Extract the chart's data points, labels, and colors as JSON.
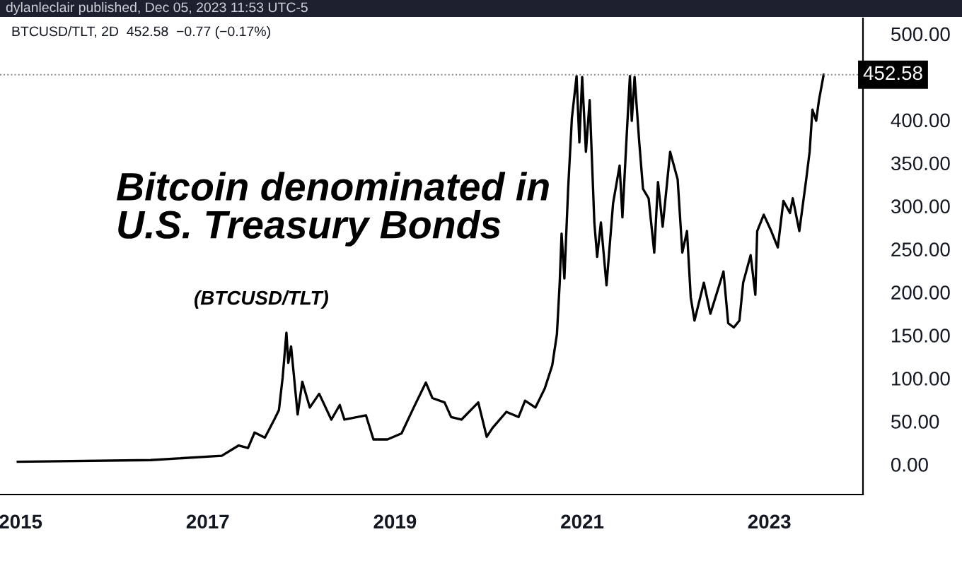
{
  "chart_data": {
    "type": "line",
    "annotations": [
      "dylanleclair published, Dec 05, 2023 11:53 UTC-5",
      "BTCUSD/TLT, 2D  452.58  −0.77 (−0.17%)",
      "Bitcoin denominated in\nU.S. Treasury Bonds",
      "(BTCUSD/TLT)"
    ],
    "series": [
      {
        "color": "#000000",
        "x": [
          2014.97,
          2016.39,
          2017.15,
          2017.33,
          2017.43,
          2017.5,
          2017.61,
          2017.71,
          2017.76,
          2017.8,
          2017.84,
          2017.86,
          2017.89,
          2017.96,
          2018.01,
          2018.09,
          2018.19,
          2018.32,
          2018.41,
          2018.46,
          2018.69,
          2018.77,
          2018.92,
          2019.07,
          2019.2,
          2019.33,
          2019.4,
          2019.53,
          2019.6,
          2019.71,
          2019.89,
          2019.98,
          2020.04,
          2020.19,
          2020.32,
          2020.39,
          2020.5,
          2020.6,
          2020.68,
          2020.73,
          2020.76,
          2020.78,
          2020.81,
          2020.85,
          2020.89,
          2020.94,
          2020.97,
          2021.0,
          2021.04,
          2021.08,
          2021.13,
          2021.16,
          2021.2,
          2021.26,
          2021.33,
          2021.4,
          2021.43,
          2021.48,
          2021.51,
          2021.53,
          2021.56,
          2021.61,
          2021.65,
          2021.71,
          2021.77,
          2021.81,
          2021.86,
          2021.94,
          2022.02,
          2022.07,
          2022.12,
          2022.16,
          2022.2,
          2022.3,
          2022.37,
          2022.51,
          2022.56,
          2022.62,
          2022.68,
          2022.72,
          2022.8,
          2022.85,
          2022.87,
          2022.94,
          2023.02,
          2023.09,
          2023.15,
          2023.22,
          2023.25,
          2023.32,
          2023.39,
          2023.43,
          2023.46,
          2023.5,
          2023.53,
          2023.58
        ],
        "values": [
          3,
          5,
          10,
          22,
          19,
          37,
          31,
          52,
          63,
          101,
          153,
          118,
          137,
          58,
          96,
          66,
          82,
          52,
          69,
          52,
          57,
          29,
          29,
          36,
          66,
          95,
          77,
          72,
          55,
          52,
          72,
          32,
          42,
          61,
          55,
          74,
          66,
          88,
          115,
          151,
          211,
          268,
          216,
          320,
          402,
          451,
          374,
          450,
          363,
          423,
          281,
          241,
          281,
          208,
          303,
          347,
          287,
          391,
          451,
          399,
          450,
          374,
          320,
          309,
          246,
          328,
          276,
          363,
          331,
          246,
          271,
          194,
          167,
          211,
          175,
          224,
          164,
          159,
          167,
          211,
          243,
          197,
          271,
          290,
          271,
          252,
          306,
          292,
          309,
          271,
          328,
          363,
          412,
          399,
          423,
          452.58
        ]
      }
    ],
    "xlim": [
      2014.78,
      2024.0
    ],
    "xticks": [
      2015,
      2017,
      2019,
      2021,
      2023
    ],
    "ylim": [
      -35,
      518
    ],
    "yticks": [
      {
        "value": 0,
        "label": "0.00"
      },
      {
        "value": 50,
        "label": "50.00"
      },
      {
        "value": 100,
        "label": "100.00"
      },
      {
        "value": 150,
        "label": "150.00"
      },
      {
        "value": 200,
        "label": "200.00"
      },
      {
        "value": 250,
        "label": "250.00"
      },
      {
        "value": 300,
        "label": "300.00"
      },
      {
        "value": 350,
        "label": "350.00"
      },
      {
        "value": 400,
        "label": "400.00"
      },
      {
        "value": 500,
        "label": "500.00"
      }
    ],
    "ref_lines": [
      {
        "axis": "y",
        "value": 452.58,
        "label": "452.58",
        "color": "#888888",
        "line_style": "dotted"
      }
    ],
    "grid": false,
    "legend": false,
    "marker": "none",
    "line_style": "solid"
  }
}
